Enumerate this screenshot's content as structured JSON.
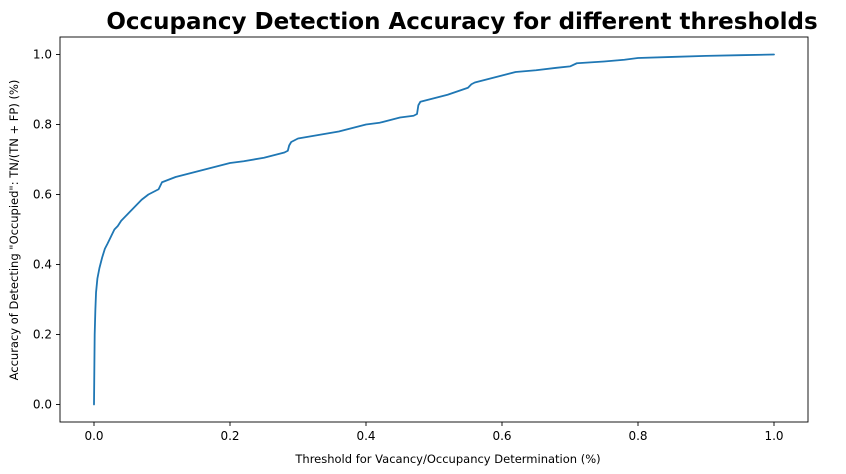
{
  "chart_data": {
    "type": "line",
    "title": "Occupancy Detection Accuracy for different thresholds",
    "xlabel": "Threshold for Vacancy/Occupancy Determination (%)",
    "ylabel": "Accuracy of Detecting \"Occupied\": TN/(TN + FP) (%)",
    "xlim": [
      -0.05,
      1.05
    ],
    "ylim": [
      -0.05,
      1.05
    ],
    "x_ticks": [
      0.0,
      0.2,
      0.4,
      0.6,
      0.8,
      1.0
    ],
    "x_tick_labels": [
      "0.0",
      "0.2",
      "0.4",
      "0.6",
      "0.8",
      "1.0"
    ],
    "y_ticks": [
      0.0,
      0.2,
      0.4,
      0.6,
      0.8,
      1.0
    ],
    "y_tick_labels": [
      "0.0",
      "0.2",
      "0.4",
      "0.6",
      "0.8",
      "1.0"
    ],
    "grid": false,
    "legend": "none",
    "series": [
      {
        "color": "#1f77b4",
        "x": [
          0.0,
          0.0005,
          0.001,
          0.002,
          0.003,
          0.005,
          0.008,
          0.012,
          0.016,
          0.02,
          0.025,
          0.03,
          0.035,
          0.04,
          0.05,
          0.06,
          0.07,
          0.08,
          0.09,
          0.095,
          0.1,
          0.12,
          0.15,
          0.18,
          0.2,
          0.22,
          0.25,
          0.28,
          0.285,
          0.287,
          0.29,
          0.3,
          0.33,
          0.36,
          0.38,
          0.4,
          0.42,
          0.45,
          0.47,
          0.475,
          0.477,
          0.48,
          0.5,
          0.52,
          0.55,
          0.555,
          0.56,
          0.58,
          0.6,
          0.62,
          0.65,
          0.68,
          0.7,
          0.71,
          0.75,
          0.78,
          0.8,
          0.85,
          0.9,
          0.95,
          1.0
        ],
        "y": [
          0.0,
          0.1,
          0.2,
          0.27,
          0.32,
          0.36,
          0.39,
          0.42,
          0.445,
          0.46,
          0.48,
          0.5,
          0.51,
          0.525,
          0.545,
          0.565,
          0.585,
          0.6,
          0.61,
          0.615,
          0.635,
          0.65,
          0.665,
          0.68,
          0.69,
          0.695,
          0.705,
          0.72,
          0.725,
          0.74,
          0.75,
          0.76,
          0.77,
          0.78,
          0.79,
          0.8,
          0.805,
          0.82,
          0.825,
          0.83,
          0.855,
          0.865,
          0.875,
          0.885,
          0.905,
          0.915,
          0.92,
          0.93,
          0.94,
          0.95,
          0.955,
          0.962,
          0.966,
          0.975,
          0.98,
          0.985,
          0.99,
          0.993,
          0.996,
          0.998,
          1.0
        ]
      }
    ]
  }
}
